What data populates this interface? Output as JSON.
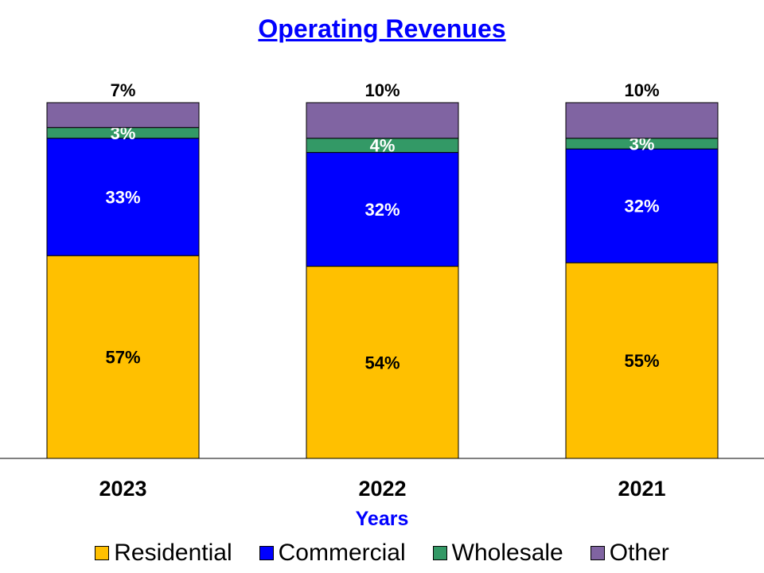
{
  "chart_data": {
    "type": "bar",
    "stacked": true,
    "title": "Operating Revenues",
    "xlabel": "Years",
    "ylabel": "",
    "ylim": [
      0,
      100
    ],
    "grid": false,
    "legend_position": "bottom",
    "categories": [
      "2023",
      "2022",
      "2021"
    ],
    "series": [
      {
        "name": "Residential",
        "color": "#FFC000",
        "values": [
          57,
          54,
          55
        ],
        "labels": [
          "57%",
          "54%",
          "55%"
        ]
      },
      {
        "name": "Commercial",
        "color": "#0000FF",
        "values": [
          33,
          32,
          32
        ],
        "labels": [
          "33%",
          "32%",
          "32%"
        ]
      },
      {
        "name": "Wholesale",
        "color": "#339966",
        "values": [
          3,
          4,
          3
        ],
        "labels": [
          "3%",
          "4%",
          "3%"
        ]
      },
      {
        "name": "Other",
        "color": "#8064A2",
        "values": [
          7,
          10,
          10
        ],
        "labels": [
          "7%",
          "10%",
          "10%"
        ]
      }
    ]
  }
}
